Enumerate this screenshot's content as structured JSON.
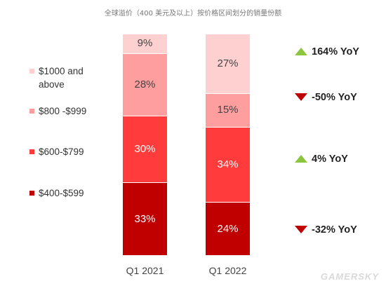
{
  "chart_data": {
    "type": "bar",
    "stacked": true,
    "title": "全球溢价（400 美元及以上）按价格区间划分的销量份额",
    "categories": [
      "Q1 2021",
      "Q1 2022"
    ],
    "series": [
      {
        "name": "$400-$599",
        "values": [
          33,
          24
        ],
        "labels": [
          "33%",
          "24%"
        ],
        "color": "#c00000",
        "text_color": "#ffffff"
      },
      {
        "name": "$600-$799",
        "values": [
          30,
          34
        ],
        "labels": [
          "30%",
          "34%"
        ],
        "color": "#ff3b3b",
        "text_color": "#ffffff"
      },
      {
        "name": "$800 -$999",
        "values": [
          28,
          15
        ],
        "labels": [
          "28%",
          "15%"
        ],
        "color": "#ff9e9e",
        "text_color": "#444444"
      },
      {
        "name": "$1000 and above",
        "values": [
          9,
          27
        ],
        "labels": [
          "9%",
          "27%"
        ],
        "color": "#ffd0d0",
        "text_color": "#444444"
      }
    ],
    "legend": {
      "position": "left",
      "order": [
        "$1000 and above",
        "$800 -$999",
        "$600-$799",
        "$400-$599"
      ]
    },
    "yoy": [
      {
        "series": "$1000 and above",
        "label": "164% YoY",
        "direction": "up"
      },
      {
        "series": "$800 -$999",
        "label": "-50% YoY",
        "direction": "down"
      },
      {
        "series": "$600-$799",
        "label": "4% YoY",
        "direction": "up"
      },
      {
        "series": "$400-$599",
        "label": "-32% YoY",
        "direction": "down"
      }
    ],
    "ylim": [
      0,
      100
    ]
  },
  "watermark": "GAMERSKY"
}
